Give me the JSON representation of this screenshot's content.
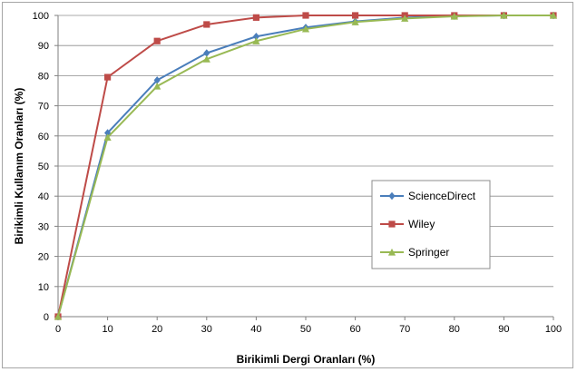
{
  "chart_data": {
    "type": "line",
    "title": "",
    "xlabel": "Birikimli Dergi Oranları (%)",
    "ylabel": "Birikimli Kullanım Oranları (%)",
    "x": [
      0,
      10,
      20,
      30,
      40,
      50,
      60,
      70,
      80,
      90,
      100
    ],
    "xlim": [
      0,
      100
    ],
    "ylim": [
      0,
      100
    ],
    "xticks": [
      "0",
      "10",
      "20",
      "30",
      "40",
      "50",
      "60",
      "70",
      "80",
      "90",
      "100"
    ],
    "yticks": [
      "0",
      "10",
      "20",
      "30",
      "40",
      "50",
      "60",
      "70",
      "80",
      "90",
      "100"
    ],
    "grid": "horizontal",
    "legend_position": "right",
    "series": [
      {
        "name": "ScienceDirect",
        "color": "#4a7ebb",
        "marker": "diamond",
        "values": [
          0,
          61,
          78.5,
          87.5,
          93,
          96,
          98,
          99.3,
          99.8,
          100,
          100
        ]
      },
      {
        "name": "Wiley",
        "color": "#be4b48",
        "marker": "square",
        "values": [
          0,
          79.5,
          91.5,
          97,
          99.3,
          100,
          100,
          100,
          100,
          100,
          100
        ]
      },
      {
        "name": "Springer",
        "color": "#98b954",
        "marker": "triangle",
        "values": [
          0,
          59.5,
          76.5,
          85.5,
          91.5,
          95.5,
          97.8,
          99,
          99.7,
          100,
          100
        ]
      }
    ]
  }
}
